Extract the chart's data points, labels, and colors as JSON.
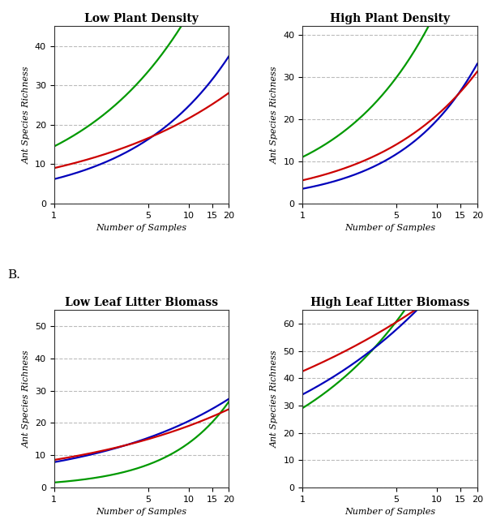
{
  "background_color": "#ffffff",
  "line_colors": [
    "#009900",
    "#0000bb",
    "#cc0000"
  ],
  "subplots": [
    {
      "title": "Low Plant Density",
      "ylim": [
        0,
        45
      ],
      "yticks": [
        0,
        10,
        20,
        30,
        40
      ],
      "green": {
        "a": 14.5,
        "b": 0.52
      },
      "blue": {
        "a": 6.2,
        "b": 0.6
      },
      "red": {
        "a": 9.0,
        "b": 0.38
      }
    },
    {
      "title": "High Plant Density",
      "ylim": [
        0,
        42
      ],
      "yticks": [
        0,
        10,
        20,
        30,
        40
      ],
      "green": {
        "a": 11.0,
        "b": 0.62
      },
      "blue": {
        "a": 3.5,
        "b": 0.75
      },
      "red": {
        "a": 5.5,
        "b": 0.58
      }
    },
    {
      "title": "Low Leaf Litter Biomass",
      "ylim": [
        0,
        55
      ],
      "yticks": [
        0,
        10,
        20,
        30,
        40,
        50
      ],
      "green": {
        "a": 1.5,
        "b": 0.96
      },
      "blue": {
        "a": 7.8,
        "b": 0.42
      },
      "red": {
        "a": 8.5,
        "b": 0.35
      }
    },
    {
      "title": "High Leaf Litter Biomass",
      "ylim": [
        0,
        65
      ],
      "yticks": [
        0,
        10,
        20,
        30,
        40,
        50,
        60
      ],
      "green": {
        "a": 29.0,
        "b": 0.46
      },
      "blue": {
        "a": 34.0,
        "b": 0.33
      },
      "red": {
        "a": 42.5,
        "b": 0.22
      }
    }
  ],
  "xticks": [
    1,
    5,
    10,
    15,
    20
  ],
  "xlim_min": 1,
  "xlim_max": 20,
  "xlabel": "Number of Samples",
  "ylabel": "Ant Species Richness",
  "title_fontsize": 10,
  "label_fontsize": 8,
  "tick_fontsize": 8,
  "B_label": "B.",
  "line_width": 1.6
}
